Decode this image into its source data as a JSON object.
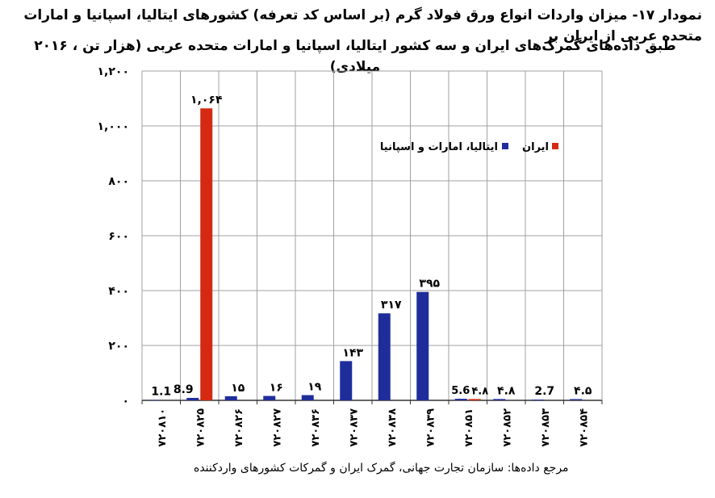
{
  "title_line1": "نمودار ۱۷- میزان واردات انواع ورق فولاد گرم (بر اساس کد تعرفه) کشورهای ایتالیا، اسپانیا و امارات متحده عربی از ایران بر",
  "title_line2": "طبق داده‌های گمرک‌های ایران و سه کشور ایتالیا، اسپانیا و امارات متحده عربی (هزار تن ، ۲۰۱۶ میلادی)",
  "source": "مرجع داده‌ها: سازمان تجارت جهانی، گمرک ایران و گمرکات کشورهای واردکننده",
  "chart_data": {
    "type": "bar",
    "categories": [
      "۷۲۰۸۱۰",
      "۷۲۰۸۲۵",
      "۷۲۰۸۲۶",
      "۷۲۰۸۲۷",
      "۷۲۰۸۳۶",
      "۷۲۰۸۳۷",
      "۷۲۰۸۳۸",
      "۷۲۰۸۳۹",
      "۷۲۰۸۵۱",
      "۷۲۰۸۵۲",
      "۷۲۰۸۵۳",
      "۷۲۰۸۵۴"
    ],
    "series": [
      {
        "name": "ایتالیا، امارات و اسپانیا",
        "color": "#1f2d9b",
        "values": [
          1.1,
          8.9,
          15,
          16,
          19,
          143,
          317,
          395,
          5.6,
          4.8,
          2.7,
          4.5
        ],
        "labels": [
          "1.1",
          "8.9",
          "۱۵",
          "۱۶",
          "۱۹",
          "۱۴۳",
          "۳۱۷",
          "۳۹۵",
          "5.6",
          "۴.۸",
          "2.7",
          "۴.۵"
        ]
      },
      {
        "name": "ایران",
        "color": "#d42a12",
        "values": [
          0,
          1064,
          0,
          0,
          0,
          0,
          0,
          0,
          4.8,
          0,
          0,
          0
        ],
        "labels": [
          "",
          "۱,۰۶۴",
          "",
          "",
          "",
          "",
          "",
          "",
          "۴.۸",
          "",
          "",
          ""
        ]
      }
    ],
    "yticks": [
      0,
      200,
      400,
      600,
      800,
      1000,
      1200
    ],
    "ytick_labels": [
      "۰",
      "۲۰۰",
      "۴۰۰",
      "۶۰۰",
      "۸۰۰",
      "۱,۰۰۰",
      "۱,۲۰۰"
    ],
    "ylim": [
      0,
      1200
    ],
    "grid": true,
    "legend_position": "top-right"
  }
}
